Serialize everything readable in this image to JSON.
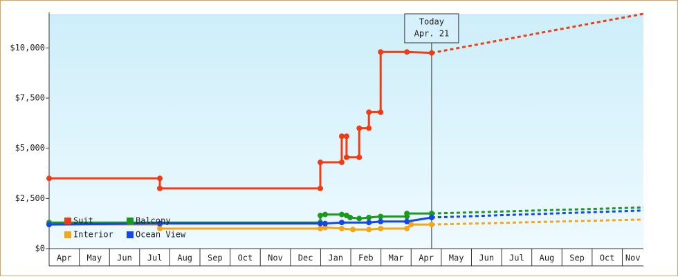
{
  "chart_data": {
    "type": "line",
    "step": true,
    "categories": [
      "Apr",
      "May",
      "Jun",
      "Jul",
      "Aug",
      "Sep",
      "Oct",
      "Nov",
      "Dec",
      "Jan",
      "Feb",
      "Mar",
      "Apr",
      "May",
      "Jun",
      "Jul",
      "Aug",
      "Sep",
      "Oct",
      "Nov"
    ],
    "xlim": [
      0,
      19.7
    ],
    "ylim": [
      0,
      11700
    ],
    "yticks": [
      {
        "value": 0,
        "label": "$0"
      },
      {
        "value": 2500,
        "label": "$2,500"
      },
      {
        "value": 5000,
        "label": "$5,000"
      },
      {
        "value": 7500,
        "label": "$7,500"
      },
      {
        "value": 10000,
        "label": "$10,000"
      }
    ],
    "grid": false,
    "legend": "lower-left",
    "annotation": {
      "lines": [
        "Today",
        "Apr. 21"
      ],
      "x": 12.68
    },
    "series": [
      {
        "name": "Suit",
        "color": "#f03c14",
        "x": [
          0,
          3.67,
          3.67,
          8.99,
          8.99,
          9.7,
          9.7,
          9.86,
          9.86,
          10.28,
          10.28,
          10.6,
          10.6,
          10.99,
          10.99,
          11.86,
          12.68
        ],
        "values": [
          3500,
          3500,
          3000,
          3000,
          4300,
          4300,
          5600,
          5600,
          4550,
          4550,
          6000,
          6000,
          6800,
          6800,
          9800,
          9800,
          9750
        ],
        "forecast_x": [
          12.68,
          19.7
        ],
        "forecast_values": [
          9750,
          11700
        ]
      },
      {
        "name": "Balcony",
        "color": "#1a9a1a",
        "x": [
          0,
          8.99,
          8.99,
          9.15,
          9.7,
          9.86,
          9.98,
          10.28,
          10.6,
          10.99,
          11.86,
          11.86,
          12.68
        ],
        "values": [
          1300,
          1300,
          1650,
          1700,
          1700,
          1650,
          1550,
          1500,
          1550,
          1600,
          1600,
          1750,
          1750
        ],
        "forecast_x": [
          12.68,
          19.7
        ],
        "forecast_values": [
          1750,
          2050
        ]
      },
      {
        "name": "Interior",
        "color": "#f5a614",
        "x": [
          0,
          3.67,
          3.67,
          8.99,
          9.15,
          9.7,
          10.07,
          10.6,
          10.99,
          11.86,
          12.0,
          12.68
        ],
        "values": [
          1200,
          1200,
          1000,
          1000,
          1050,
          1000,
          950,
          950,
          1000,
          1000,
          1200,
          1200
        ],
        "forecast_x": [
          12.68,
          19.7
        ],
        "forecast_values": [
          1200,
          1450
        ]
      },
      {
        "name": "Ocean View",
        "color": "#1446f0",
        "x": [
          0,
          3.67,
          8.99,
          9.15,
          9.7,
          10.6,
          10.99,
          11.86,
          12.68
        ],
        "values": [
          1200,
          1250,
          1250,
          1250,
          1300,
          1300,
          1350,
          1350,
          1550
        ],
        "forecast_x": [
          12.68,
          19.7
        ],
        "forecast_values": [
          1550,
          1900
        ]
      }
    ]
  }
}
